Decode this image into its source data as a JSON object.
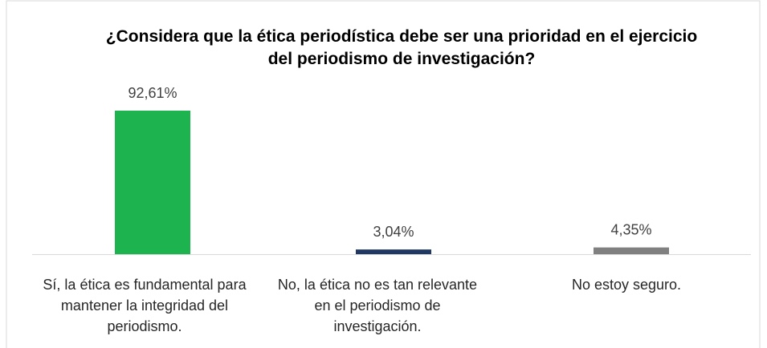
{
  "chart_data": {
    "type": "bar",
    "title": "¿Considera que la ética periodística debe ser una prioridad en el ejercicio del periodismo de investigación?",
    "categories": [
      "Sí, la ética es fundamental para mantener la integridad del periodismo.",
      "No, la ética no es tan relevante en el periodismo de investigación.",
      "No estoy seguro."
    ],
    "values": [
      92.61,
      3.04,
      4.35
    ],
    "value_labels": [
      "92,61%",
      "3,04%",
      "4,35%"
    ],
    "colors": [
      "#1db34f",
      "#1f3864",
      "#808080"
    ]
  }
}
